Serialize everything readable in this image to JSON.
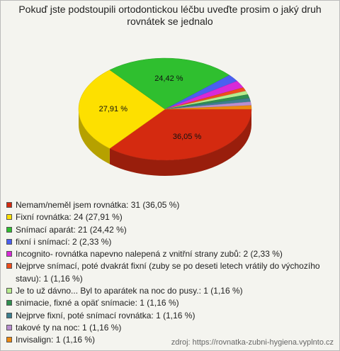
{
  "chart_data": {
    "type": "pie",
    "three_d": true,
    "title": "Pokuď jste podstoupili ortodontickou léčbu uveďte prosim o jaký druh rovnátek se jednalo",
    "categories": [
      "Nemam/neměl jsem rovnátka: 31 (36,05 %)",
      "Fixní rovnátka: 24 (27,91 %)",
      "Snímací aparát: 21 (24,42 %)",
      "fixní i snímací: 2 (2,33 %)",
      "Incognito- rovnátka napevno nalepená z vnitřní strany zubů: 2 (2,33 %)",
      "Nejprve snímací, poté dvakrát fixní (zuby se po deseti letech vrátily do výchozího stavu): 1 (1,16 %)",
      "Je to už dávno... Byl to aparátek na noc do pusy.: 1 (1,16 %)",
      "snimacie, fixné a opäť snímacie: 1 (1,16 %)",
      "Nejprve fixní, poté snímací rovnátka: 1 (1,16 %)",
      "takové ty na noc: 1 (1,16 %)",
      "Invisalign: 1 (1,16 %)"
    ],
    "values": [
      36.05,
      27.91,
      24.42,
      2.33,
      2.33,
      1.16,
      1.16,
      1.16,
      1.16,
      1.16,
      1.16
    ],
    "value_labels": [
      "36,05 %",
      "27,91 %",
      "24,42 %",
      null,
      null,
      null,
      null,
      null,
      null,
      null,
      null
    ],
    "colors": [
      "#d42a10",
      "#fde000",
      "#2fbf2f",
      "#4a5ff0",
      "#d82ad8",
      "#ee4d1c",
      "#b7ec8e",
      "#2f8f4f",
      "#3d7f8f",
      "#b98fd0",
      "#ee8a10"
    ],
    "source": "zdroj: https://rovnatka-zubni-hygiena.vyplnto.cz"
  }
}
